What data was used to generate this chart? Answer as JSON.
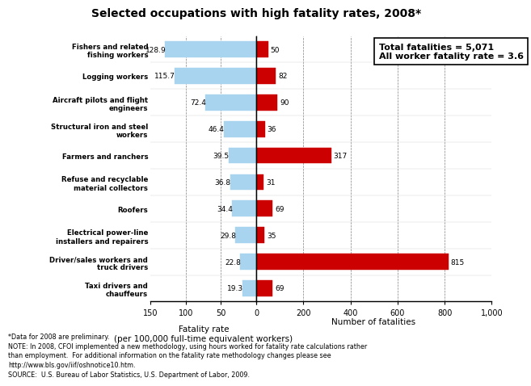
{
  "title": "Selected occupations with high fatality rates, 2008*",
  "occupations": [
    "Fishers and related\nfishing workers",
    "Logging workers",
    "Aircraft pilots and flight\nengineers",
    "Structural iron and steel\nworkers",
    "Farmers and ranchers",
    "Refuse and recyclable\nmaterial collectors",
    "Roofers",
    "Electrical power-line\ninstallers and repairers",
    "Driver/sales workers and\ntruck drivers",
    "Taxi drivers and\nchauffeurs"
  ],
  "fatality_rates": [
    128.9,
    115.7,
    72.4,
    46.4,
    39.5,
    36.8,
    34.4,
    29.8,
    22.8,
    19.3
  ],
  "num_fatalities": [
    50,
    82,
    90,
    36,
    317,
    31,
    69,
    35,
    815,
    69
  ],
  "bar_color_rate": "#a8d4f0",
  "bar_color_fatalities": "#cc0000",
  "xlabel_left": "Fatality rate\n(per 100,000 full-time equivalent workers)",
  "xlabel_right": "Number of fatalities",
  "footnote_line1": "*Data for 2008 are preliminary.",
  "footnote_line2": "NOTE: In 2008, CFOI implemented a new methodology, using hours worked for fatality rate calculations rather",
  "footnote_line3": "than employment.  For additional information on the fatality rate methodology changes please see",
  "footnote_line4": "http://www.bls.gov/iif/oshnotice10.htm.",
  "footnote_line5": "SOURCE:  U.S. Bureau of Labor Statistics, U.S. Department of Labor, 2009.",
  "annotation_text": "Total fatalities = 5,071\nAll worker fatality rate = 3.6",
  "left_xlim": 150,
  "right_xlim": 1000,
  "left_xticks": [
    150,
    100,
    50,
    0
  ],
  "right_xticks": [
    0,
    200,
    400,
    600,
    800,
    1000
  ],
  "left_xticklabels": [
    "150",
    "100",
    "50",
    ""
  ],
  "right_xticklabels": [
    "0",
    "200",
    "400",
    "600",
    "800",
    "1,000"
  ]
}
